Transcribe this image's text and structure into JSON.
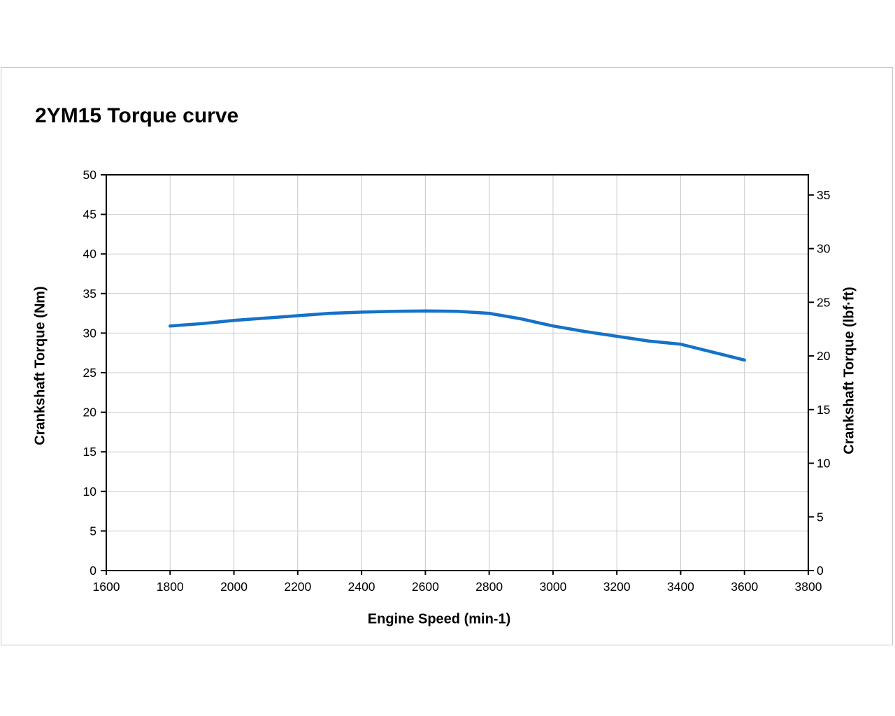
{
  "page": {
    "title": "2YM15 Torque curve"
  },
  "colors": {
    "line": "#1572C6",
    "grid": "#c9c9c9",
    "frame": "#000000",
    "text": "#000000",
    "panel_border": "#c9c9c9",
    "background": "#ffffff"
  },
  "chart_data": {
    "type": "line",
    "title": "2YM15 Torque curve",
    "xlabel": "Engine Speed (min-1)",
    "ylabel_left": "Crankshaft Torque (Nm)",
    "ylabel_right": "Crankshaft Torque (lbf·ft)",
    "xlim": [
      1600,
      3800
    ],
    "ylim_left": [
      0,
      50
    ],
    "x_ticks": [
      1600,
      1800,
      2000,
      2200,
      2400,
      2600,
      2800,
      3000,
      3200,
      3400,
      3600,
      3800
    ],
    "y_ticks_left": [
      0,
      5,
      10,
      15,
      20,
      25,
      30,
      35,
      40,
      45,
      50
    ],
    "y_ticks_right": [
      0,
      5,
      10,
      15,
      20,
      25,
      30,
      35
    ],
    "nm_per_lbfft": 1.35582,
    "grid": true,
    "legend": false,
    "series": [
      {
        "name": "Crankshaft Torque",
        "color": "#1572C6",
        "x": [
          1800,
          1900,
          2000,
          2100,
          2200,
          2300,
          2400,
          2500,
          2600,
          2700,
          2800,
          2900,
          3000,
          3100,
          3200,
          3300,
          3400,
          3500,
          3600
        ],
        "values_nm": [
          30.9,
          31.2,
          31.6,
          31.9,
          32.2,
          32.5,
          32.65,
          32.75,
          32.8,
          32.75,
          32.5,
          31.8,
          30.9,
          30.2,
          29.6,
          29.0,
          28.6,
          27.6,
          26.6
        ]
      }
    ]
  }
}
